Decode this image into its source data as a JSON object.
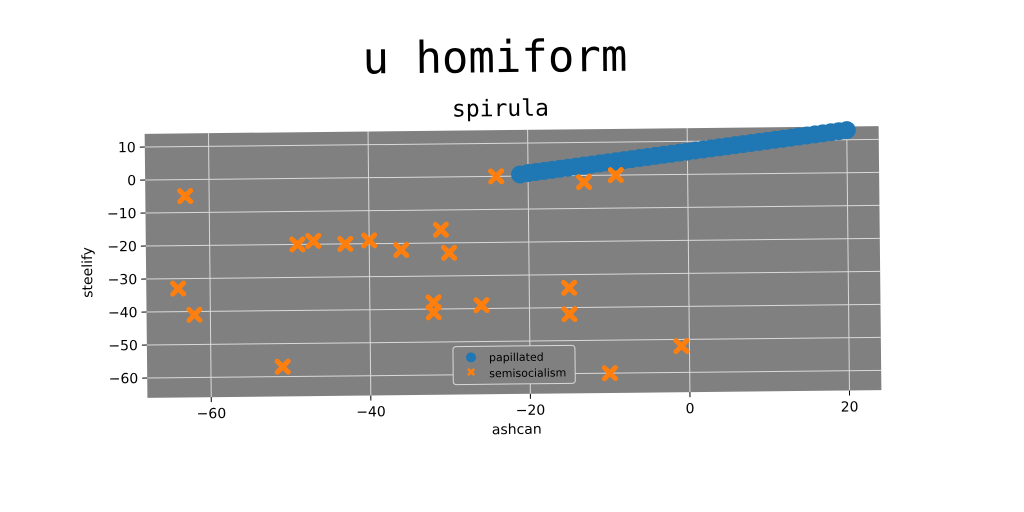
{
  "figure": {
    "suptitle": "u homiform"
  },
  "chart_data": {
    "type": "scatter",
    "title": "spirula",
    "xlabel": "ashcan",
    "ylabel": "steelify",
    "xlim": [
      -68,
      24
    ],
    "ylim": [
      -66,
      14
    ],
    "xticks": [
      -60,
      -40,
      -20,
      0,
      20
    ],
    "yticks": [
      -60,
      -50,
      -40,
      -30,
      -20,
      -10,
      0,
      10
    ],
    "grid": true,
    "background_color": "#808080",
    "legend_position": "lower-center",
    "series": [
      {
        "name": "papillated",
        "marker": "circle",
        "color": "#1f77b4",
        "x": [
          -21,
          -20,
          -19,
          -18,
          -17,
          -16,
          -15,
          -14,
          -13,
          -12,
          -11,
          -10,
          -9,
          -8,
          -7,
          -6,
          -5,
          -4,
          -3,
          -2,
          -1,
          0,
          1,
          2,
          3,
          4,
          5,
          6,
          7,
          8,
          9,
          10,
          11,
          12,
          13,
          14,
          15,
          16,
          17,
          18,
          19,
          20
        ],
        "y": [
          0.5,
          0.9,
          1.2,
          1.5,
          1.8,
          2.1,
          2.4,
          2.7,
          3.0,
          3.3,
          3.6,
          3.9,
          4.2,
          4.5,
          4.8,
          5.1,
          5.4,
          5.7,
          6.0,
          6.3,
          6.6,
          6.9,
          7.2,
          7.5,
          7.8,
          8.1,
          8.4,
          8.7,
          9.0,
          9.3,
          9.6,
          9.9,
          10.2,
          10.5,
          10.8,
          11.1,
          11.4,
          11.7,
          12.0,
          12.3,
          12.6,
          12.9
        ]
      },
      {
        "name": "semisocialism",
        "marker": "x",
        "color": "#ff7f0e",
        "x": [
          -63,
          -64,
          -62,
          -51,
          -49,
          -47,
          -43,
          -40,
          -36,
          -32,
          -31,
          -30,
          -32,
          -26,
          -24,
          -13,
          -9,
          -15,
          -15,
          -10,
          -1
        ],
        "y": [
          -5,
          -33,
          -41,
          -57,
          -20,
          -19,
          -20,
          -19,
          -22,
          -38,
          -16,
          -23,
          -41,
          -39,
          0,
          -2,
          0,
          -34,
          -42,
          -60,
          -52
        ]
      }
    ]
  }
}
